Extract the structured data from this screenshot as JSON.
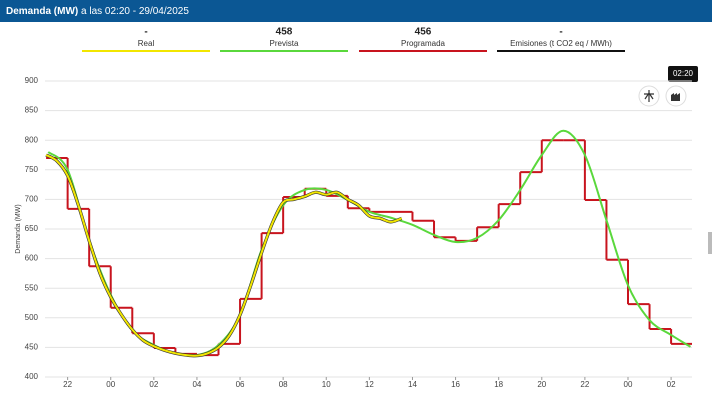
{
  "header": {
    "title": "Demanda (MW)",
    "subtitle": "a las 02:20 - 29/04/2025"
  },
  "chart_data": {
    "type": "line",
    "ylabel": "Demanda (MW)",
    "cursor_label": "02:20",
    "xlim": [
      -3.05,
      26.97
    ],
    "ylim": [
      400,
      900
    ],
    "yticks": [
      400,
      450,
      500,
      550,
      600,
      650,
      700,
      750,
      800,
      850,
      900
    ],
    "xticks": [
      {
        "value": -2,
        "label": "22"
      },
      {
        "value": 0,
        "label": "00"
      },
      {
        "value": 2,
        "label": "02"
      },
      {
        "value": 4,
        "label": "04"
      },
      {
        "value": 6,
        "label": "06"
      },
      {
        "value": 8,
        "label": "08"
      },
      10,
      12,
      14,
      16,
      18,
      20,
      22,
      {
        "value": 24,
        "label": "00"
      },
      {
        "value": 26,
        "label": "02"
      }
    ],
    "grid": true,
    "series": [
      {
        "name": "Real",
        "current": "-",
        "color": "#f2e600",
        "style": "line",
        "x": [
          -3,
          -2.5,
          -2,
          -1.5,
          -1,
          -0.5,
          0,
          0.5,
          1,
          1.5,
          2,
          2.5,
          3,
          3.5,
          4,
          4.5,
          5,
          5.5,
          6,
          6.5,
          7,
          7.5,
          8,
          8.5,
          9,
          9.5,
          10,
          10.5,
          11,
          11.5,
          12,
          12.5,
          13,
          13.5
        ],
        "values": [
          775,
          765,
          740,
          690,
          630,
          575,
          535,
          505,
          480,
          462,
          452,
          445,
          440,
          437,
          436,
          440,
          450,
          470,
          505,
          555,
          610,
          660,
          695,
          700,
          705,
          712,
          708,
          712,
          700,
          690,
          672,
          668,
          662,
          668
        ]
      },
      {
        "name": "Prevista",
        "current": 458,
        "color": "#5ad83c",
        "style": "line",
        "x": [
          -2.9,
          -2,
          -1,
          0,
          1,
          2,
          3,
          4,
          5,
          6,
          7,
          8,
          9,
          10,
          11,
          12,
          13,
          14,
          15,
          16,
          17,
          18,
          19,
          20,
          21,
          22,
          23,
          24,
          25,
          26,
          26.9
        ],
        "values": [
          780,
          750,
          631,
          539,
          479,
          454,
          440,
          437,
          454,
          505,
          615,
          690,
          716,
          716,
          699,
          679,
          669,
          657,
          640,
          628,
          635,
          665,
          716,
          775,
          816,
          775,
          665,
          555,
          496,
          471,
          451
        ]
      },
      {
        "name": "Programada",
        "current": 456,
        "color": "#c8141e",
        "style": "step",
        "x": [
          -3,
          -2,
          -1,
          0,
          1,
          2,
          3,
          4,
          5,
          6,
          7,
          8,
          9,
          10,
          11,
          12,
          13,
          14,
          15,
          16,
          17,
          18,
          19,
          20,
          21,
          22,
          23,
          24,
          25,
          26
        ],
        "values": [
          770,
          684,
          587,
          517,
          474,
          449,
          439,
          437,
          456,
          532,
          643,
          704,
          718,
          706,
          685,
          679,
          679,
          664,
          636,
          630,
          653,
          692,
          746,
          800,
          800,
          699,
          598,
          523,
          481,
          456
        ]
      },
      {
        "name": "Emisiones (t CO2 eq / MWh)",
        "current": "-",
        "color": "#111111",
        "style": "line",
        "x": [],
        "values": []
      }
    ]
  }
}
